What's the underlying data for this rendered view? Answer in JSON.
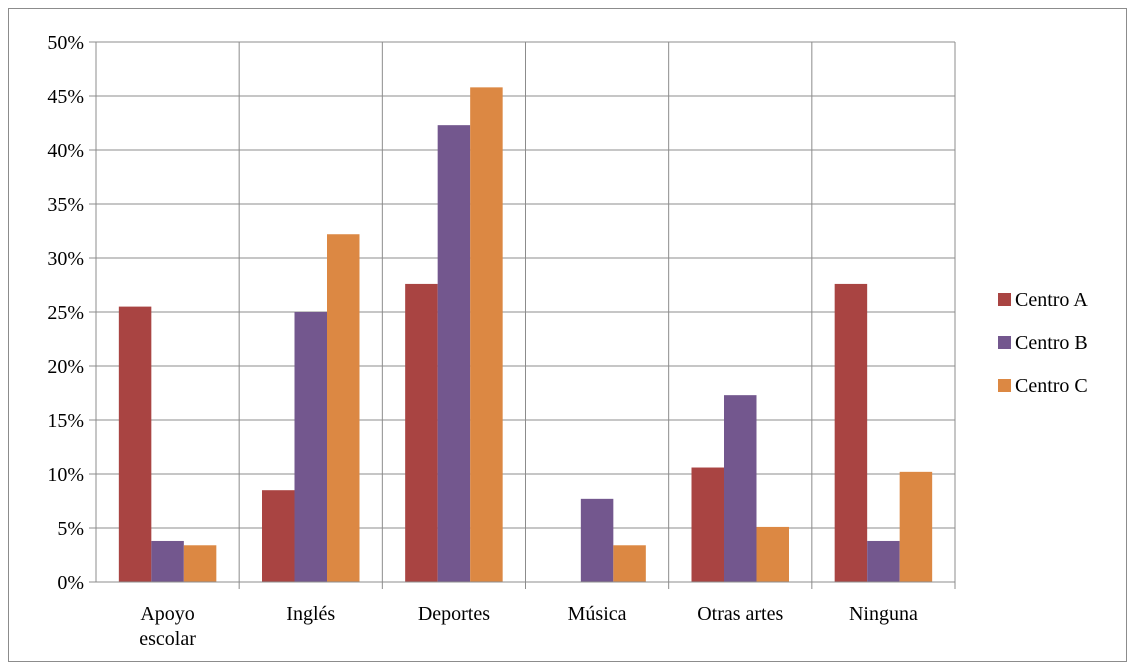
{
  "chart_data": {
    "type": "bar",
    "categories": [
      [
        "Apoyo",
        "escolar"
      ],
      [
        "Inglés"
      ],
      [
        "Deportes"
      ],
      [
        "Música"
      ],
      [
        "Otras artes"
      ],
      [
        "Ninguna"
      ]
    ],
    "series": [
      {
        "name": "Centro A",
        "color": "#A94442",
        "values": [
          25.5,
          8.5,
          27.6,
          0,
          10.6,
          27.6
        ]
      },
      {
        "name": "Centro B",
        "color": "#73578E",
        "values": [
          3.8,
          25.0,
          42.3,
          7.7,
          17.3,
          3.8
        ]
      },
      {
        "name": "Centro C",
        "color": "#DC8843",
        "values": [
          3.4,
          32.2,
          45.8,
          3.4,
          5.1,
          10.2
        ]
      }
    ],
    "yticks": [
      "0%",
      "5%",
      "10%",
      "15%",
      "20%",
      "25%",
      "30%",
      "35%",
      "40%",
      "45%",
      "50%"
    ],
    "ylim": [
      0,
      50
    ],
    "grid": true,
    "legend": "right"
  }
}
